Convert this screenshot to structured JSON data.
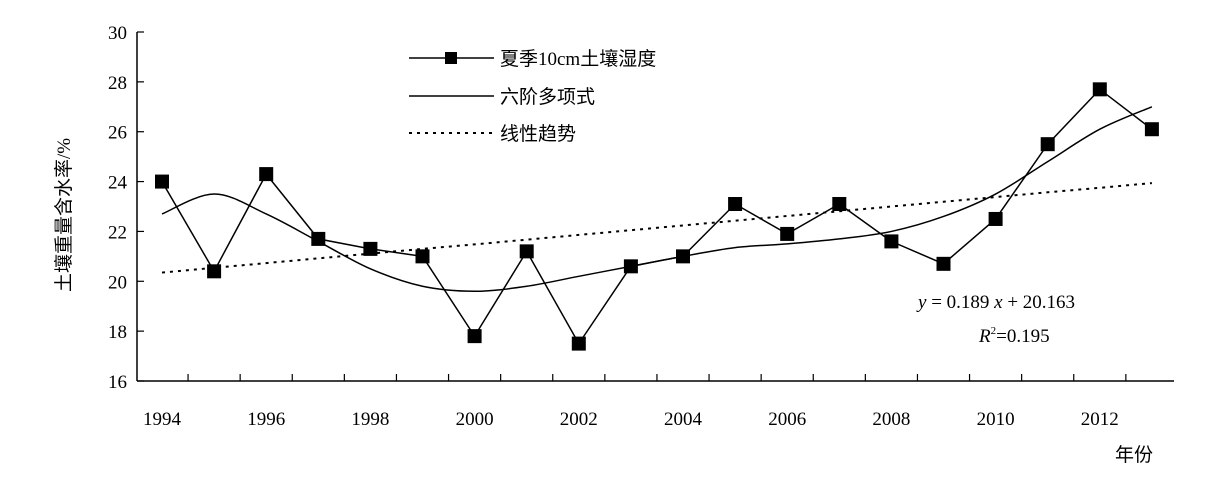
{
  "chart_data": {
    "type": "line",
    "title": "",
    "xlabel": "年份",
    "ylabel": "土壤重量含水率/%",
    "x": [
      1994,
      1995,
      1996,
      1997,
      1998,
      1999,
      2000,
      2001,
      2002,
      2003,
      2004,
      2005,
      2006,
      2007,
      2008,
      2009,
      2010,
      2011,
      2012,
      2013
    ],
    "x_tick_labels": [
      "1994",
      "1996",
      "1998",
      "2000",
      "2002",
      "2004",
      "2006",
      "2008",
      "2010",
      "2012"
    ],
    "y_tick_labels": [
      "16",
      "18",
      "20",
      "22",
      "24",
      "26",
      "28",
      "30"
    ],
    "xlim": [
      1994,
      2013
    ],
    "ylim": [
      16,
      30
    ],
    "grid": false,
    "legend_position": "top-center",
    "series": [
      {
        "name": "夏季10cm土壤湿度",
        "style": "line-square-markers",
        "color": "#000000",
        "values": [
          24.0,
          20.4,
          24.3,
          21.7,
          21.3,
          21.0,
          17.8,
          21.2,
          17.5,
          20.6,
          21.0,
          23.1,
          21.9,
          23.1,
          21.6,
          20.7,
          22.5,
          25.5,
          27.7,
          26.1
        ]
      },
      {
        "name": "六阶多项式",
        "style": "smooth-line",
        "color": "#000000",
        "values": [
          22.7,
          23.5,
          22.7,
          21.6,
          20.5,
          19.8,
          19.6,
          19.8,
          20.2,
          20.6,
          21.0,
          21.35,
          21.5,
          21.7,
          22.0,
          22.6,
          23.5,
          24.8,
          26.1,
          27.0
        ]
      },
      {
        "name": "线性趋势",
        "style": "dotted-line",
        "color": "#000000",
        "values": [
          20.35,
          20.54,
          20.73,
          20.92,
          21.11,
          21.3,
          21.48,
          21.67,
          21.86,
          22.05,
          22.24,
          22.43,
          22.62,
          22.81,
          23.0,
          23.19,
          23.38,
          23.57,
          23.75,
          23.94
        ]
      }
    ],
    "annotations": {
      "equation": {
        "y": "y",
        "equals_slope": " = 0.189 ",
        "x": "x",
        "intercept": " + 20.163"
      },
      "r2": {
        "R": "R",
        "sup": "2",
        "value": "=0.195"
      }
    }
  }
}
